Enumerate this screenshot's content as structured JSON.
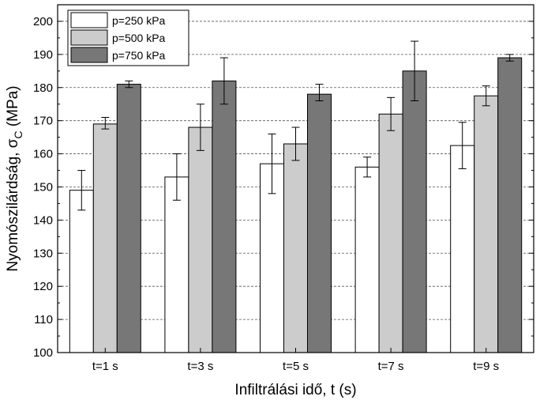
{
  "chart_data": {
    "type": "bar",
    "categories": [
      "t=1 s",
      "t=3 s",
      "t=5 s",
      "t=7 s",
      "t=9 s"
    ],
    "series": [
      {
        "name": "p=250 kPa",
        "color": "#ffffff",
        "values": [
          149,
          153,
          157,
          156,
          162.5
        ],
        "err_low": [
          143,
          146,
          148,
          153,
          155.5
        ],
        "err_high": [
          155,
          160,
          166,
          159,
          169.5
        ]
      },
      {
        "name": "p=500 kPa",
        "color": "#cccccc",
        "values": [
          169,
          168,
          163,
          172,
          177.5
        ],
        "err_low": [
          167.5,
          161,
          158,
          167,
          174.5
        ],
        "err_high": [
          171,
          175,
          168,
          177,
          180.5
        ]
      },
      {
        "name": "p=750 kPa",
        "color": "#777777",
        "values": [
          181,
          182,
          178,
          185,
          189
        ],
        "err_low": [
          180,
          175,
          176,
          176,
          188
        ],
        "err_high": [
          182,
          189,
          181,
          194,
          190
        ]
      }
    ],
    "xlabel": "Infiltrálási idő, t (s)",
    "ylabel_main": "Nyomószilárdság, σ",
    "ylabel_sub": "C",
    "ylabel_unit": " (MPa)",
    "ylim": [
      100,
      205
    ],
    "yticks": [
      "100",
      "110",
      "120",
      "130",
      "140",
      "150",
      "160",
      "170",
      "180",
      "190",
      "200"
    ],
    "grid": true,
    "legend_position": "top-left"
  }
}
